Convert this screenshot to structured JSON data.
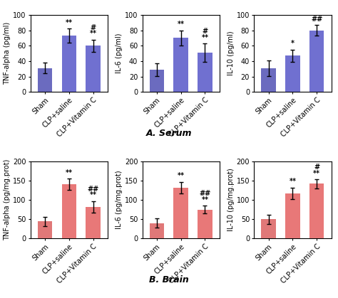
{
  "chart_data": [
    {
      "type": "bar",
      "ylabel": "TNF-alpha (pg/ml)",
      "categories": [
        "Sham",
        "CLP+saline",
        "CLP+Vitamin C"
      ],
      "values": [
        31,
        73,
        60
      ],
      "errors": [
        7,
        9,
        8
      ],
      "colors": [
        "#6b6bbf",
        "#7070d0",
        "#7070d0"
      ],
      "ylim": [
        0,
        100
      ],
      "yticks": [
        0,
        20,
        40,
        60,
        80,
        100
      ],
      "annotations": [
        {
          "category": "CLP+saline",
          "text": "**"
        },
        {
          "category": "CLP+Vitamin C",
          "text": "**"
        },
        {
          "category": "CLP+Vitamin C",
          "text": "#"
        }
      ]
    },
    {
      "type": "bar",
      "ylabel": "IL-6 (pg/ml)",
      "categories": [
        "Sham",
        "CLP+saline",
        "CLP+Vitamin C"
      ],
      "values": [
        29,
        70,
        51
      ],
      "errors": [
        8,
        10,
        12
      ],
      "colors": [
        "#6b6bbf",
        "#7070d0",
        "#7070d0"
      ],
      "ylim": [
        0,
        100
      ],
      "yticks": [
        0,
        20,
        40,
        60,
        80,
        100
      ],
      "annotations": [
        {
          "category": "CLP+saline",
          "text": "**"
        },
        {
          "category": "CLP+Vitamin C",
          "text": "**"
        },
        {
          "category": "CLP+Vitamin C",
          "text": "#"
        }
      ]
    },
    {
      "type": "bar",
      "ylabel": "IL-10 (pg/ml)",
      "categories": [
        "Sham",
        "CLP+saline",
        "CLP+Vitamin C"
      ],
      "values": [
        31,
        47,
        80
      ],
      "errors": [
        10,
        8,
        7
      ],
      "colors": [
        "#6b6bbf",
        "#7070d0",
        "#7070d0"
      ],
      "ylim": [
        0,
        100
      ],
      "yticks": [
        0,
        20,
        40,
        60,
        80,
        100
      ],
      "annotations": [
        {
          "category": "CLP+saline",
          "text": "*"
        },
        {
          "category": "CLP+Vitamin C",
          "text": "##"
        }
      ]
    },
    {
      "type": "bar",
      "ylabel": "TNF-alpha (pg/mg.prot)",
      "categories": [
        "Sham",
        "CLP+saline",
        "CLP+Vitamin C"
      ],
      "values": [
        44,
        140,
        82
      ],
      "errors": [
        12,
        15,
        15
      ],
      "colors": [
        "#e07878",
        "#e87878",
        "#e87878"
      ],
      "ylim": [
        0,
        200
      ],
      "yticks": [
        0,
        50,
        100,
        150,
        200
      ],
      "annotations": [
        {
          "category": "CLP+saline",
          "text": "**"
        },
        {
          "category": "CLP+Vitamin C",
          "text": "**"
        },
        {
          "category": "CLP+Vitamin C",
          "text": "##"
        }
      ]
    },
    {
      "type": "bar",
      "ylabel": "IL-6 (pg/mg.prot)",
      "categories": [
        "Sham",
        "CLP+saline",
        "CLP+Vitamin C"
      ],
      "values": [
        40,
        132,
        75
      ],
      "errors": [
        12,
        15,
        10
      ],
      "colors": [
        "#e07878",
        "#e87878",
        "#e87878"
      ],
      "ylim": [
        0,
        200
      ],
      "yticks": [
        0,
        50,
        100,
        150,
        200
      ],
      "annotations": [
        {
          "category": "CLP+saline",
          "text": "**"
        },
        {
          "category": "CLP+Vitamin C",
          "text": "**"
        },
        {
          "category": "CLP+Vitamin C",
          "text": "##"
        }
      ]
    },
    {
      "type": "bar",
      "ylabel": "IL-10 (pg/mg.prot)",
      "categories": [
        "Sham",
        "CLP+saline",
        "CLP+Vitamin C"
      ],
      "values": [
        50,
        117,
        142
      ],
      "errors": [
        12,
        15,
        12
      ],
      "colors": [
        "#e07878",
        "#e87878",
        "#e87878"
      ],
      "ylim": [
        0,
        200
      ],
      "yticks": [
        0,
        50,
        100,
        150,
        200
      ],
      "annotations": [
        {
          "category": "CLP+saline",
          "text": "**"
        },
        {
          "category": "CLP+Vitamin C",
          "text": "**"
        },
        {
          "category": "CLP+Vitamin C",
          "text": "#"
        }
      ]
    }
  ],
  "annotations": [
    "A. Serum",
    "B. Brain"
  ]
}
